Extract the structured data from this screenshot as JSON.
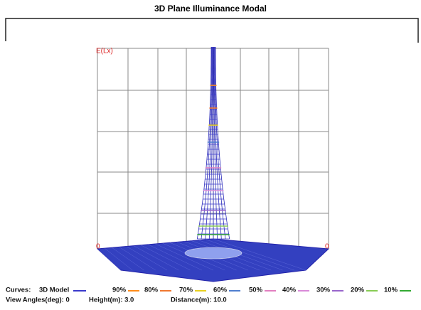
{
  "title": "3D Plane Illuminance Modal",
  "axis": {
    "value_label": "E(Lx)",
    "left_origin": "0",
    "right_origin": "0"
  },
  "legend": {
    "heading": "Curves:",
    "items": [
      {
        "name": "3D Model",
        "color": "#3a3acc"
      },
      {
        "name": "90%",
        "color": "#ff8c1a"
      },
      {
        "name": "80%",
        "color": "#f07830"
      },
      {
        "name": "70%",
        "color": "#e8d020"
      },
      {
        "name": "60%",
        "color": "#4f7ecf"
      },
      {
        "name": "50%",
        "color": "#e27fc0"
      },
      {
        "name": "40%",
        "color": "#d98ad8"
      },
      {
        "name": "30%",
        "color": "#9966cc"
      },
      {
        "name": "20%",
        "color": "#88cc55"
      },
      {
        "name": "10%",
        "color": "#33aa33"
      }
    ]
  },
  "info": {
    "view_angles": "View Angles(deg): 0",
    "height": "Height(m): 3.0",
    "distance": "Distance(m): 10.0"
  }
}
